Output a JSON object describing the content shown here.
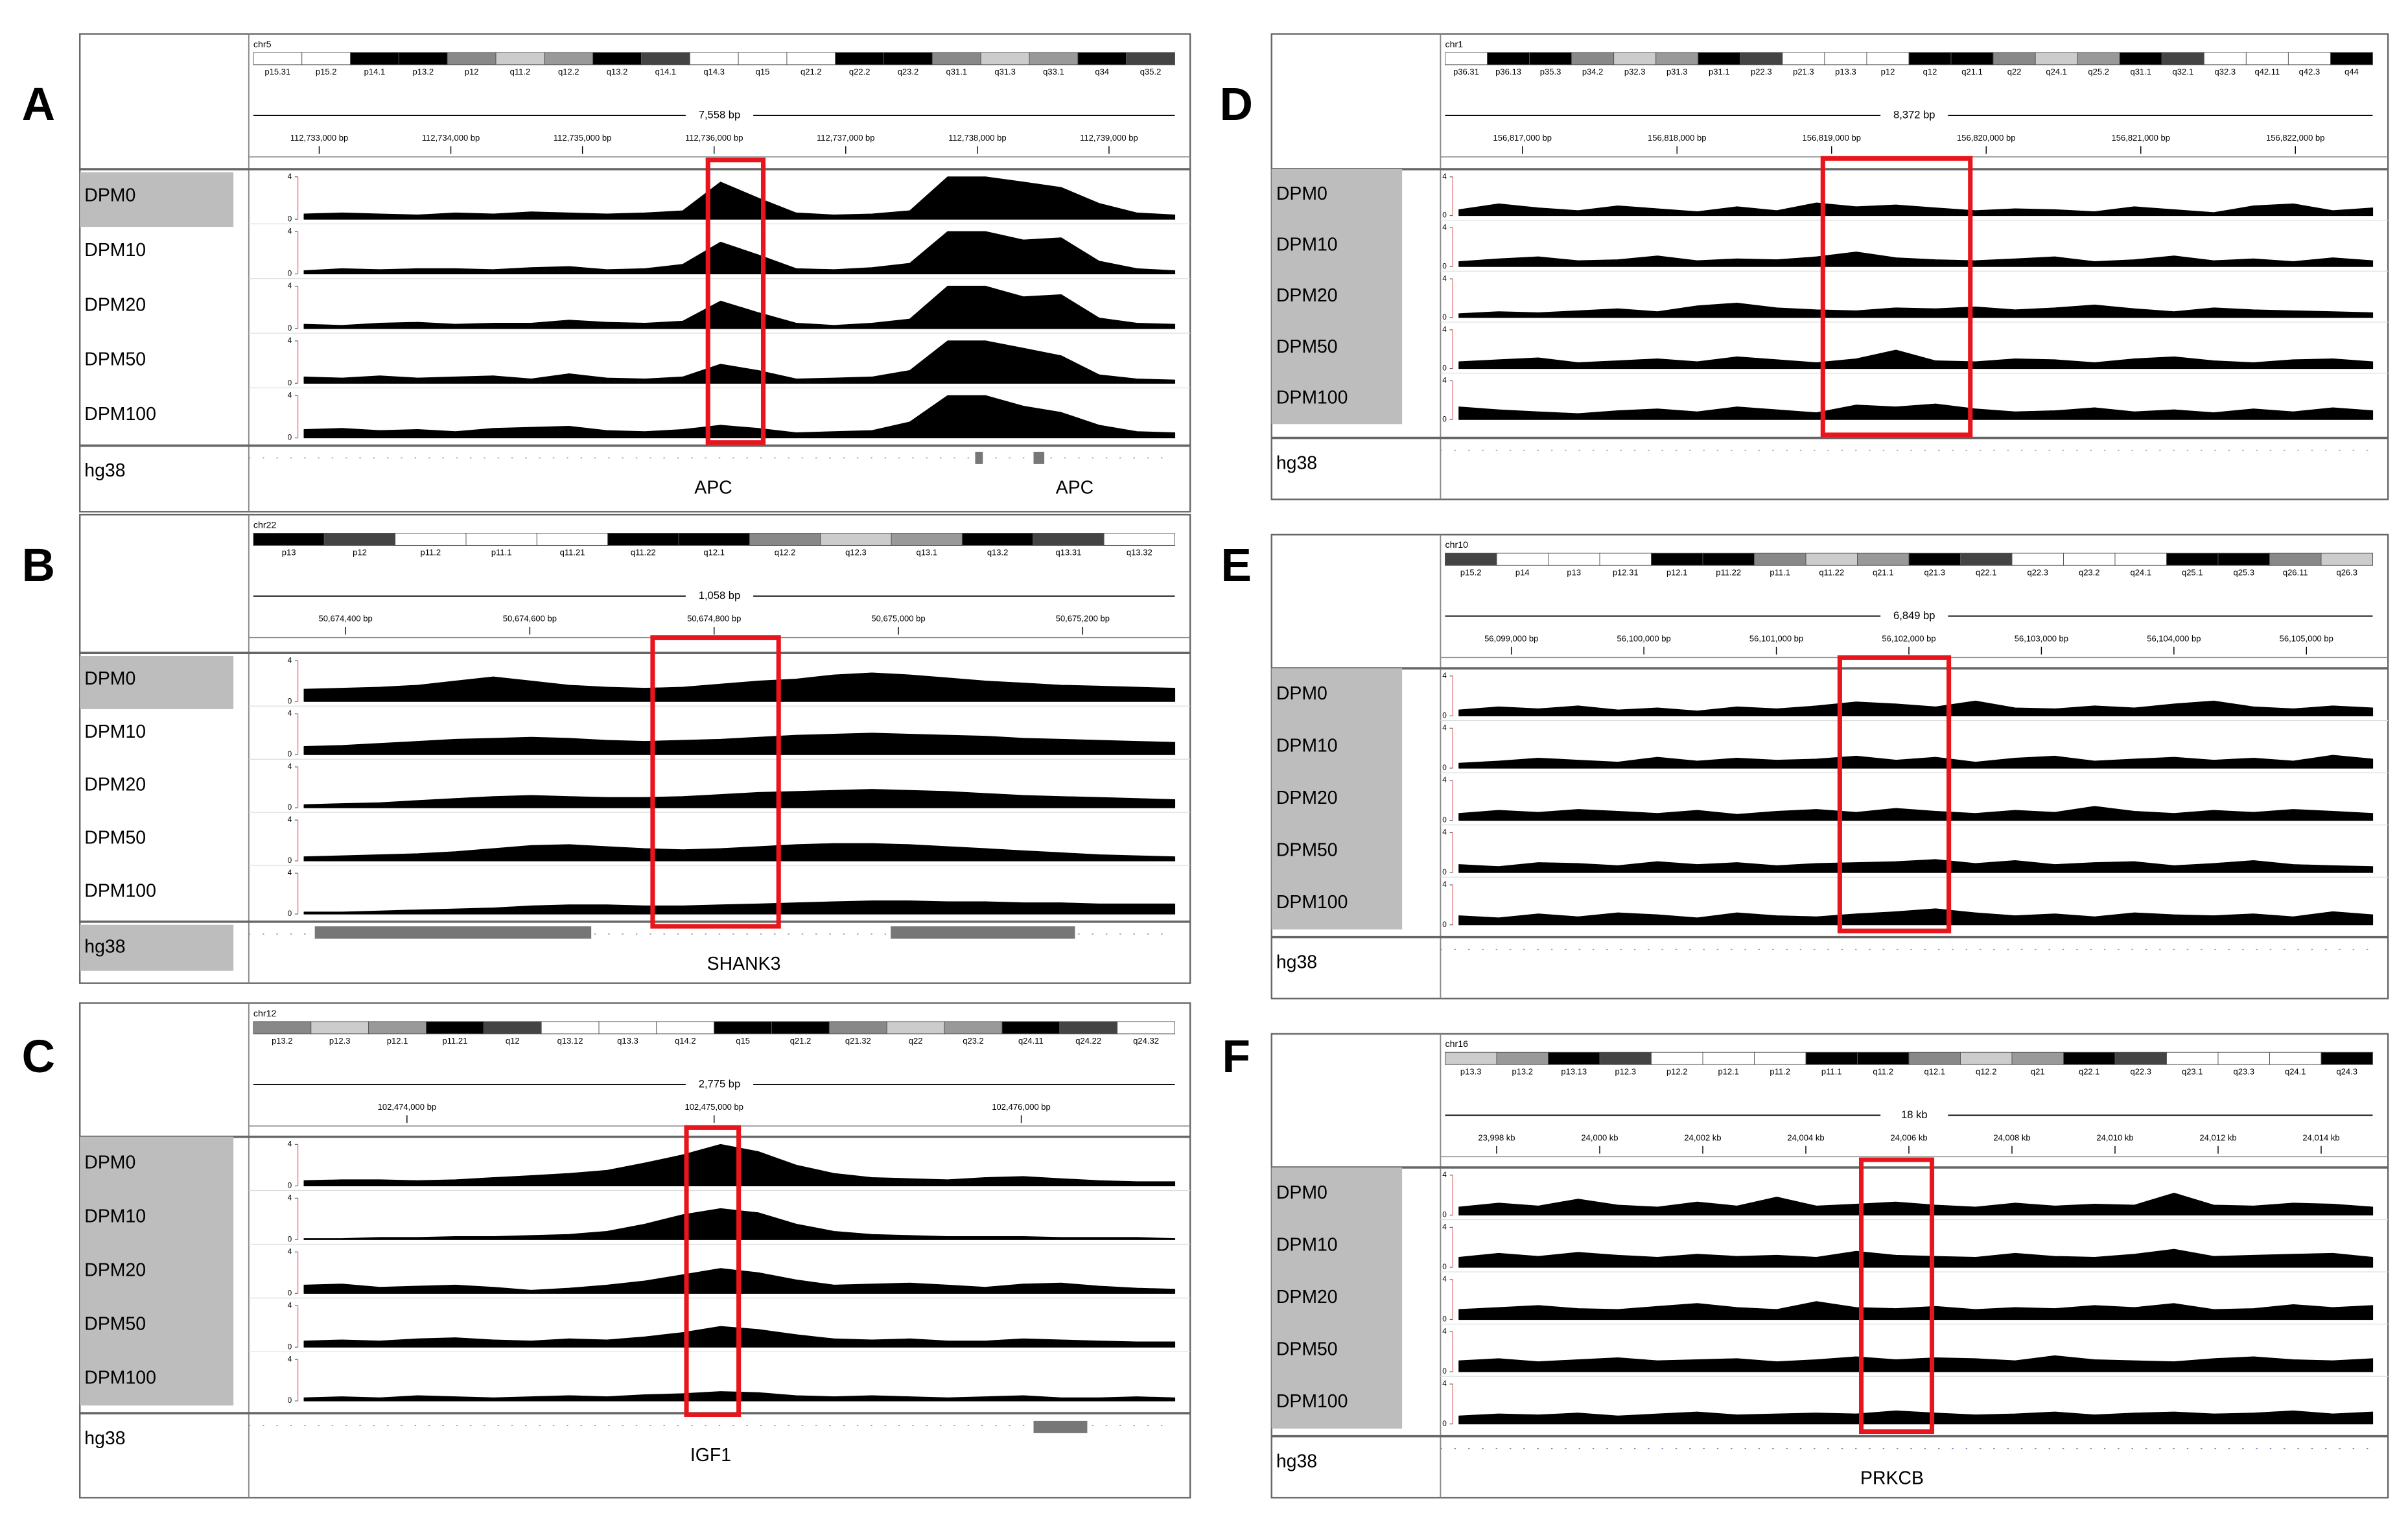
{
  "panels": [
    {
      "letter": "A",
      "chromosome": "chr5",
      "ylim": [
        0,
        4
      ],
      "yticks": [
        0,
        4
      ],
      "cytobands": [
        "p15.31",
        "p15.2",
        "p14.1",
        "p13.2",
        "p12",
        "q11.2",
        "q12.2",
        "q13.2",
        "q14.1",
        "q14.3",
        "q15",
        "q21.2",
        "q22.2",
        "q23.2",
        "q31.1",
        "q31.3",
        "q33.1",
        "q34",
        "q35.2"
      ],
      "span": "7,558 bp",
      "ruler_labels": [
        "112,733,000 bp",
        "112,734,000 bp",
        "112,735,000 bp",
        "112,736,000 bp",
        "112,737,000 bp",
        "112,738,000 bp",
        "112,739,000 bp"
      ],
      "tracks": [
        {
          "name": "DPM0",
          "values": [
            0.5,
            0.6,
            0.5,
            0.4,
            0.6,
            0.5,
            0.7,
            0.6,
            0.5,
            0.6,
            0.8,
            3.5,
            2.0,
            0.6,
            0.4,
            0.5,
            0.8,
            4,
            4,
            3.5,
            3,
            1.5,
            0.6,
            0.4
          ]
        },
        {
          "name": "DPM10",
          "values": [
            0.3,
            0.5,
            0.4,
            0.5,
            0.5,
            0.4,
            0.6,
            0.7,
            0.4,
            0.5,
            0.9,
            3.0,
            1.8,
            0.5,
            0.4,
            0.6,
            1.0,
            4,
            4,
            3.2,
            3.4,
            1.2,
            0.5,
            0.3
          ]
        },
        {
          "name": "DPM20",
          "values": [
            0.4,
            0.3,
            0.5,
            0.6,
            0.4,
            0.5,
            0.5,
            0.8,
            0.6,
            0.5,
            0.7,
            2.6,
            1.5,
            0.5,
            0.3,
            0.5,
            0.9,
            4,
            4,
            3.0,
            3.2,
            1.0,
            0.5,
            0.4
          ]
        },
        {
          "name": "DPM50",
          "values": [
            0.6,
            0.5,
            0.7,
            0.5,
            0.6,
            0.7,
            0.4,
            0.9,
            0.5,
            0.4,
            0.6,
            1.8,
            1.2,
            0.4,
            0.5,
            0.6,
            1.2,
            4,
            4,
            3.3,
            2.6,
            0.8,
            0.4,
            0.3
          ]
        },
        {
          "name": "DPM100",
          "values": [
            0.8,
            0.9,
            0.7,
            0.8,
            0.6,
            0.9,
            1.0,
            1.1,
            0.7,
            0.6,
            0.8,
            1.2,
            0.9,
            0.5,
            0.6,
            0.7,
            1.5,
            4,
            4,
            3.0,
            2.4,
            1.2,
            0.6,
            0.5
          ]
        }
      ],
      "genome": "hg38",
      "genes": [
        "APC",
        "APC"
      ]
    },
    {
      "letter": "B",
      "chromosome": "chr22",
      "ylim": [
        0,
        4
      ],
      "yticks": [
        0,
        4
      ],
      "cytobands": [
        "p13",
        "p12",
        "p11.2",
        "p11.1",
        "q11.21",
        "q11.22",
        "q12.1",
        "q12.2",
        "q12.3",
        "q13.1",
        "q13.2",
        "q13.31",
        "q13.32"
      ],
      "span": "1,058 bp",
      "ruler_labels": [
        "50,674,400 bp",
        "50,674,600 bp",
        "50,674,800 bp",
        "50,675,000 bp",
        "50,675,200 bp"
      ],
      "tracks": [
        {
          "name": "DPM0",
          "values": [
            1.2,
            1.3,
            1.4,
            1.6,
            2.0,
            2.4,
            2.0,
            1.6,
            1.4,
            1.3,
            1.4,
            1.7,
            2.0,
            2.2,
            2.6,
            2.8,
            2.6,
            2.3,
            2.0,
            1.8,
            1.6,
            1.5,
            1.4,
            1.3
          ]
        },
        {
          "name": "DPM10",
          "values": [
            0.8,
            0.9,
            1.1,
            1.3,
            1.5,
            1.6,
            1.7,
            1.6,
            1.4,
            1.3,
            1.4,
            1.5,
            1.7,
            1.9,
            2.0,
            2.1,
            2.0,
            1.9,
            1.8,
            1.6,
            1.5,
            1.4,
            1.3,
            1.2
          ]
        },
        {
          "name": "DPM20",
          "values": [
            0.3,
            0.4,
            0.5,
            0.7,
            0.9,
            1.1,
            1.2,
            1.1,
            1.0,
            1.0,
            1.1,
            1.3,
            1.5,
            1.6,
            1.7,
            1.8,
            1.7,
            1.6,
            1.4,
            1.2,
            1.1,
            1.0,
            0.9,
            0.8
          ]
        },
        {
          "name": "DPM50",
          "values": [
            0.4,
            0.5,
            0.6,
            0.7,
            0.9,
            1.2,
            1.5,
            1.6,
            1.4,
            1.2,
            1.1,
            1.2,
            1.4,
            1.6,
            1.7,
            1.7,
            1.6,
            1.4,
            1.2,
            1.0,
            0.8,
            0.6,
            0.5,
            0.4
          ]
        },
        {
          "name": "DPM100",
          "values": [
            0.2,
            0.2,
            0.3,
            0.4,
            0.5,
            0.6,
            0.8,
            0.9,
            0.9,
            0.8,
            0.8,
            0.9,
            1.0,
            1.1,
            1.2,
            1.3,
            1.3,
            1.2,
            1.2,
            1.1,
            1.1,
            1.0,
            1.0,
            1.0
          ]
        }
      ],
      "genome": "hg38",
      "genes": [
        "SHANK3"
      ]
    },
    {
      "letter": "C",
      "chromosome": "chr12",
      "ylim": [
        0,
        4
      ],
      "yticks": [
        0,
        4
      ],
      "cytobands": [
        "p13.2",
        "p12.3",
        "p12.1",
        "p11.21",
        "q12",
        "q13.12",
        "q13.3",
        "q14.2",
        "q15",
        "q21.2",
        "q21.32",
        "q22",
        "q23.2",
        "q24.11",
        "q24.22",
        "q24.32"
      ],
      "span": "2,775 bp",
      "ruler_labels": [
        "102,474,000 bp",
        "102,475,000 bp",
        "102,476,000 bp"
      ],
      "tracks": [
        {
          "name": "DPM0",
          "values": [
            0.5,
            0.6,
            0.6,
            0.5,
            0.6,
            0.8,
            1.0,
            1.2,
            1.5,
            2.2,
            3.0,
            4.0,
            3.3,
            2.0,
            1.2,
            0.8,
            0.7,
            0.6,
            0.8,
            0.9,
            0.7,
            0.5,
            0.4,
            0.4
          ]
        },
        {
          "name": "DPM10",
          "values": [
            0.1,
            0.1,
            0.2,
            0.2,
            0.3,
            0.3,
            0.4,
            0.5,
            0.8,
            1.5,
            2.4,
            3.0,
            2.6,
            1.5,
            0.8,
            0.5,
            0.4,
            0.3,
            0.3,
            0.3,
            0.2,
            0.2,
            0.2,
            0.1
          ]
        },
        {
          "name": "DPM20",
          "values": [
            0.8,
            0.9,
            0.6,
            0.7,
            0.8,
            0.6,
            0.3,
            0.5,
            0.8,
            1.2,
            1.8,
            2.4,
            2.0,
            1.3,
            0.8,
            0.9,
            1.0,
            0.8,
            0.6,
            0.9,
            1.0,
            0.7,
            0.5,
            0.4
          ]
        },
        {
          "name": "DPM50",
          "values": [
            0.6,
            0.7,
            0.6,
            0.8,
            0.9,
            0.7,
            0.6,
            0.8,
            0.7,
            1.0,
            1.4,
            2.0,
            1.7,
            1.2,
            0.8,
            0.7,
            0.8,
            0.6,
            0.6,
            0.8,
            0.7,
            0.6,
            0.5,
            0.5
          ]
        },
        {
          "name": "DPM100",
          "values": [
            0.3,
            0.4,
            0.3,
            0.5,
            0.4,
            0.3,
            0.4,
            0.5,
            0.4,
            0.6,
            0.7,
            0.9,
            0.8,
            0.5,
            0.4,
            0.5,
            0.4,
            0.3,
            0.4,
            0.5,
            0.3,
            0.3,
            0.4,
            0.3
          ]
        }
      ],
      "genome": "hg38",
      "genes": [
        "IGF1"
      ]
    },
    {
      "letter": "D",
      "chromosome": "chr1",
      "ylim": [
        0,
        4
      ],
      "yticks": [
        0,
        4
      ],
      "cytobands": [
        "p36.31",
        "p36.13",
        "p35.3",
        "p34.2",
        "p32.3",
        "p31.3",
        "p31.1",
        "p22.3",
        "p21.3",
        "p13.3",
        "p12",
        "q12",
        "q21.1",
        "q22",
        "q24.1",
        "q25.2",
        "q31.1",
        "q32.1",
        "q32.3",
        "q42.11",
        "q42.3",
        "q44"
      ],
      "span": "8,372 bp",
      "ruler_labels": [
        "156,817,000 bp",
        "156,818,000 bp",
        "156,819,000 bp",
        "156,820,000 bp",
        "156,821,000 bp",
        "156,822,000 bp"
      ],
      "tracks": [
        {
          "name": "DPM0",
          "values": [
            0.6,
            1.2,
            0.8,
            0.5,
            1.0,
            0.7,
            0.4,
            0.9,
            0.5,
            1.3,
            0.9,
            1.1,
            0.8,
            0.5,
            0.7,
            0.6,
            0.4,
            0.9,
            0.6,
            0.3,
            1.0,
            1.2,
            0.5,
            0.8
          ]
        },
        {
          "name": "DPM10",
          "values": [
            0.5,
            0.8,
            1.0,
            0.6,
            0.7,
            1.1,
            0.6,
            0.8,
            0.7,
            1.0,
            1.5,
            0.9,
            0.7,
            0.6,
            0.8,
            1.0,
            0.5,
            0.7,
            1.1,
            0.6,
            0.8,
            0.5,
            0.9,
            0.6
          ]
        },
        {
          "name": "DPM20",
          "values": [
            0.4,
            0.6,
            0.5,
            0.7,
            0.9,
            0.6,
            1.2,
            1.5,
            1.0,
            0.8,
            0.7,
            1.0,
            0.9,
            1.1,
            0.8,
            1.0,
            1.3,
            0.9,
            0.6,
            1.0,
            0.8,
            0.7,
            0.6,
            0.5
          ]
        },
        {
          "name": "DPM50",
          "values": [
            0.7,
            0.9,
            1.1,
            0.6,
            0.8,
            1.0,
            0.7,
            1.2,
            0.9,
            0.6,
            1.0,
            1.9,
            0.8,
            0.7,
            1.0,
            0.9,
            0.6,
            1.0,
            1.2,
            0.8,
            0.6,
            0.9,
            1.0,
            0.7
          ]
        },
        {
          "name": "DPM100",
          "values": [
            1.3,
            1.0,
            0.8,
            0.6,
            0.9,
            1.1,
            0.8,
            1.3,
            1.0,
            0.7,
            1.5,
            1.3,
            1.6,
            1.1,
            0.8,
            0.9,
            1.2,
            0.8,
            1.0,
            0.7,
            1.1,
            0.8,
            1.2,
            0.9
          ]
        }
      ],
      "genome": "hg38",
      "genes": []
    },
    {
      "letter": "E",
      "chromosome": "chr10",
      "ylim": [
        0,
        4
      ],
      "yticks": [
        0,
        4
      ],
      "cytobands": [
        "p15.2",
        "p14",
        "p13",
        "p12.31",
        "p12.1",
        "p11.22",
        "p11.1",
        "q11.22",
        "q21.1",
        "q21.3",
        "q22.1",
        "q22.3",
        "q23.2",
        "q24.1",
        "q25.1",
        "q25.3",
        "q26.11",
        "q26.3"
      ],
      "span": "6,849 bp",
      "ruler_labels": [
        "56,099,000 bp",
        "56,100,000 bp",
        "56,101,000 bp",
        "56,102,000 bp",
        "56,103,000 bp",
        "56,104,000 bp",
        "56,105,000 bp"
      ],
      "tracks": [
        {
          "name": "DPM0",
          "values": [
            0.6,
            0.9,
            0.7,
            1.0,
            0.6,
            0.8,
            0.5,
            0.9,
            0.7,
            1.0,
            1.4,
            1.2,
            0.9,
            1.5,
            0.8,
            0.7,
            1.0,
            0.8,
            1.2,
            1.5,
            0.9,
            0.7,
            1.0,
            0.8
          ]
        },
        {
          "name": "DPM10",
          "values": [
            0.5,
            0.7,
            1.0,
            0.8,
            0.6,
            1.1,
            0.7,
            1.0,
            0.8,
            0.9,
            1.2,
            0.8,
            1.1,
            0.6,
            1.0,
            1.2,
            0.7,
            0.9,
            1.1,
            0.8,
            1.0,
            0.7,
            1.3,
            0.9
          ]
        },
        {
          "name": "DPM20",
          "values": [
            0.7,
            1.0,
            0.8,
            1.1,
            0.9,
            0.7,
            1.0,
            0.6,
            0.9,
            1.1,
            0.8,
            1.2,
            0.9,
            0.7,
            1.0,
            0.8,
            1.4,
            0.9,
            0.7,
            1.0,
            0.8,
            1.1,
            0.9,
            0.7
          ]
        },
        {
          "name": "DPM50",
          "values": [
            0.8,
            0.6,
            1.0,
            0.9,
            0.7,
            1.1,
            0.8,
            1.0,
            0.7,
            0.9,
            1.0,
            1.1,
            1.3,
            0.9,
            1.2,
            0.8,
            1.0,
            1.1,
            0.7,
            0.9,
            1.2,
            0.8,
            0.7,
            0.6
          ]
        },
        {
          "name": "DPM100",
          "values": [
            0.9,
            0.7,
            1.1,
            0.8,
            1.2,
            1.0,
            0.7,
            1.2,
            0.9,
            0.8,
            1.1,
            1.3,
            1.6,
            1.2,
            0.9,
            1.1,
            0.8,
            1.2,
            1.0,
            0.9,
            1.1,
            0.8,
            1.3,
            1.0
          ]
        }
      ],
      "genome": "hg38",
      "genes": []
    },
    {
      "letter": "F",
      "chromosome": "chr16",
      "ylim": [
        0,
        4
      ],
      "yticks": [
        0,
        4
      ],
      "cytobands": [
        "p13.3",
        "p13.2",
        "p13.13",
        "p12.3",
        "p12.2",
        "p12.1",
        "p11.2",
        "p11.1",
        "q11.2",
        "q12.1",
        "q12.2",
        "q21",
        "q22.1",
        "q22.3",
        "q23.1",
        "q23.3",
        "q24.1",
        "q24.3"
      ],
      "span": "18 kb",
      "ruler_labels": [
        "23,998 kb",
        "24,000 kb",
        "24,002 kb",
        "24,004 kb",
        "24,006 kb",
        "24,008 kb",
        "24,010 kb",
        "24,012 kb",
        "24,014 kb"
      ],
      "tracks": [
        {
          "name": "DPM0",
          "values": [
            0.8,
            1.2,
            0.9,
            1.6,
            1.0,
            0.8,
            1.3,
            0.9,
            1.8,
            0.9,
            1.1,
            1.3,
            1.0,
            0.8,
            1.2,
            0.9,
            1.1,
            1.0,
            2.2,
            1.0,
            0.9,
            1.2,
            1.1,
            0.8
          ]
        },
        {
          "name": "DPM10",
          "values": [
            1.0,
            1.4,
            1.1,
            1.5,
            1.2,
            1.0,
            1.3,
            1.1,
            1.2,
            1.0,
            1.6,
            1.2,
            1.1,
            1.0,
            1.4,
            1.1,
            1.0,
            1.3,
            1.8,
            1.1,
            1.2,
            1.3,
            1.4,
            1.0
          ]
        },
        {
          "name": "DPM20",
          "values": [
            1.0,
            1.2,
            1.4,
            1.1,
            1.0,
            1.3,
            1.6,
            1.2,
            1.0,
            1.8,
            1.2,
            1.1,
            1.3,
            1.0,
            1.2,
            1.1,
            1.4,
            1.2,
            1.6,
            1.0,
            1.1,
            1.5,
            1.2,
            1.4
          ]
        },
        {
          "name": "DPM50",
          "values": [
            1.1,
            1.3,
            1.0,
            1.2,
            1.4,
            1.1,
            1.2,
            1.3,
            1.0,
            1.2,
            1.5,
            1.2,
            1.4,
            1.3,
            1.1,
            1.6,
            1.2,
            1.1,
            1.0,
            1.3,
            1.5,
            1.2,
            1.1,
            1.3
          ]
        },
        {
          "name": "DPM100",
          "values": [
            0.8,
            1.0,
            0.9,
            1.1,
            0.8,
            1.0,
            1.2,
            0.9,
            1.0,
            1.1,
            1.0,
            1.3,
            1.1,
            0.9,
            1.0,
            1.2,
            0.9,
            1.1,
            1.2,
            1.0,
            1.1,
            1.3,
            1.0,
            1.2
          ]
        }
      ],
      "genome": "hg38",
      "genes": [
        "PRKCB"
      ]
    }
  ]
}
